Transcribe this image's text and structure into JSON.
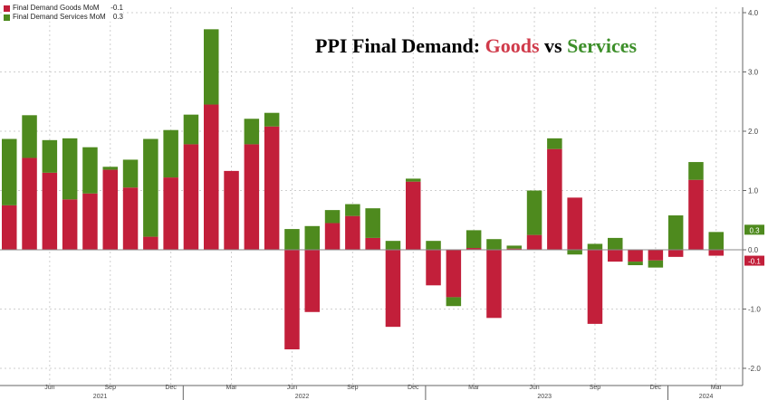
{
  "title": {
    "prefix": "PPI Final Demand: ",
    "goods": "Goods",
    "mid": " vs ",
    "services": "Services"
  },
  "legend": [
    {
      "label": "Final Demand Goods MoM",
      "value": "-0.1",
      "color": "#c21f3a"
    },
    {
      "label": "Final Demand Services MoM",
      "value": "0.3",
      "color": "#4e8a1e"
    }
  ],
  "colors": {
    "goods": "#c21f3a",
    "services": "#4e8a1e",
    "grid": "#cfcfcf",
    "axis": "#666666"
  },
  "chart_data": {
    "type": "bar",
    "stacked": true,
    "grid": true,
    "legend_position": "top-left",
    "ylim": [
      -2.0,
      4.0
    ],
    "y_ticks": [
      "4.0",
      "3.0",
      "2.0",
      "1.0",
      "0.0",
      "-1.0",
      "-2.0"
    ],
    "x_ticks": [
      "Jun",
      "Sep",
      "Dec",
      "Mar",
      "Jun",
      "Sep",
      "Dec",
      "Mar",
      "Jun",
      "Sep",
      "Dec",
      "Mar"
    ],
    "x_years": [
      "2021",
      "2022",
      "2023",
      "2024"
    ],
    "categories": [
      "2021-04",
      "2021-05",
      "2021-06",
      "2021-07",
      "2021-08",
      "2021-09",
      "2021-10",
      "2021-11",
      "2021-12",
      "2022-01",
      "2022-02",
      "2022-03",
      "2022-04",
      "2022-05",
      "2022-06",
      "2022-07",
      "2022-08",
      "2022-09",
      "2022-10",
      "2022-11",
      "2022-12",
      "2023-01",
      "2023-02",
      "2023-03",
      "2023-04",
      "2023-05",
      "2023-06",
      "2023-07",
      "2023-08",
      "2023-09",
      "2023-10",
      "2023-11",
      "2023-12",
      "2024-01",
      "2024-02",
      "2024-03"
    ],
    "series": [
      {
        "name": "Final Demand Goods MoM",
        "values": [
          0.75,
          1.55,
          1.3,
          0.85,
          0.95,
          1.35,
          1.05,
          0.22,
          1.22,
          1.78,
          2.45,
          1.33,
          1.78,
          2.08,
          -1.68,
          -1.05,
          0.45,
          0.57,
          0.2,
          -1.3,
          1.15,
          -0.6,
          -0.8,
          0.03,
          -1.15,
          0.02,
          0.25,
          1.7,
          0.88,
          -1.25,
          -0.2,
          -0.2,
          -0.18,
          -0.12,
          1.18,
          -0.1
        ]
      },
      {
        "name": "Final Demand Services MoM",
        "values": [
          1.12,
          0.72,
          0.55,
          1.03,
          0.78,
          0.05,
          0.47,
          1.65,
          0.8,
          0.5,
          1.27,
          0.0,
          0.43,
          0.23,
          0.35,
          0.4,
          0.22,
          0.2,
          0.5,
          0.15,
          0.05,
          0.15,
          -0.15,
          0.3,
          0.18,
          0.05,
          0.75,
          0.18,
          -0.08,
          0.1,
          0.2,
          -0.06,
          -0.12,
          0.58,
          0.3,
          0.3
        ]
      }
    ],
    "last_value_labels": [
      {
        "series": "Final Demand Services MoM",
        "text": "0.3"
      },
      {
        "series": "Final Demand Goods MoM",
        "text": "-0.1"
      }
    ]
  }
}
